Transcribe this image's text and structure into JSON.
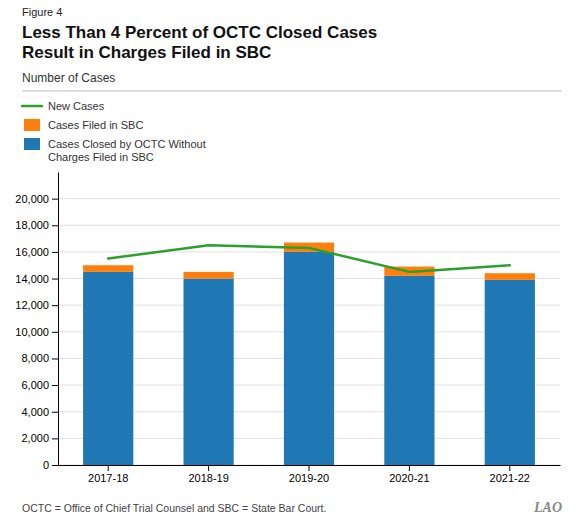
{
  "chart_data": {
    "type": "bar",
    "title": "Less Than 4 Percent of OCTC Closed Cases\nResult in Charges Filed in SBC",
    "subtitle": "Number of Cases",
    "annotations": [
      "Figure 4",
      "OCTC = Office of Chief Trial Counsel and SBC = State Bar Court.",
      "LAO"
    ],
    "categories": [
      "2017-18",
      "2018-19",
      "2019-20",
      "2020-21",
      "2021-22"
    ],
    "stacked": true,
    "series": [
      {
        "name": "Cases Closed by OCTC Without\nCharges Filed in SBC",
        "type": "bar",
        "values": [
          14500,
          14000,
          16000,
          14200,
          13900
        ]
      },
      {
        "name": "Cases Filed in SBC",
        "type": "bar",
        "values": [
          500,
          500,
          700,
          700,
          500
        ]
      },
      {
        "name": "New Cases",
        "type": "line",
        "values": [
          15500,
          16500,
          16300,
          14500,
          15000
        ]
      }
    ],
    "ylim": [
      0,
      22000
    ],
    "yticks": [
      0,
      {
        "value": 2000,
        "label": "2,000"
      },
      {
        "value": 4000,
        "label": "4,000"
      },
      {
        "value": 6000,
        "label": "6,000"
      },
      {
        "value": 8000,
        "label": "8,000"
      },
      {
        "value": 10000,
        "label": "10,000"
      },
      {
        "value": 12000,
        "label": "12,000"
      },
      {
        "value": 14000,
        "label": "14,000"
      },
      {
        "value": 16000,
        "label": "16,000"
      },
      {
        "value": 18000,
        "label": "18,000"
      },
      {
        "value": 20000,
        "label": "20,000"
      }
    ],
    "grid": true,
    "legend": "top-left"
  }
}
